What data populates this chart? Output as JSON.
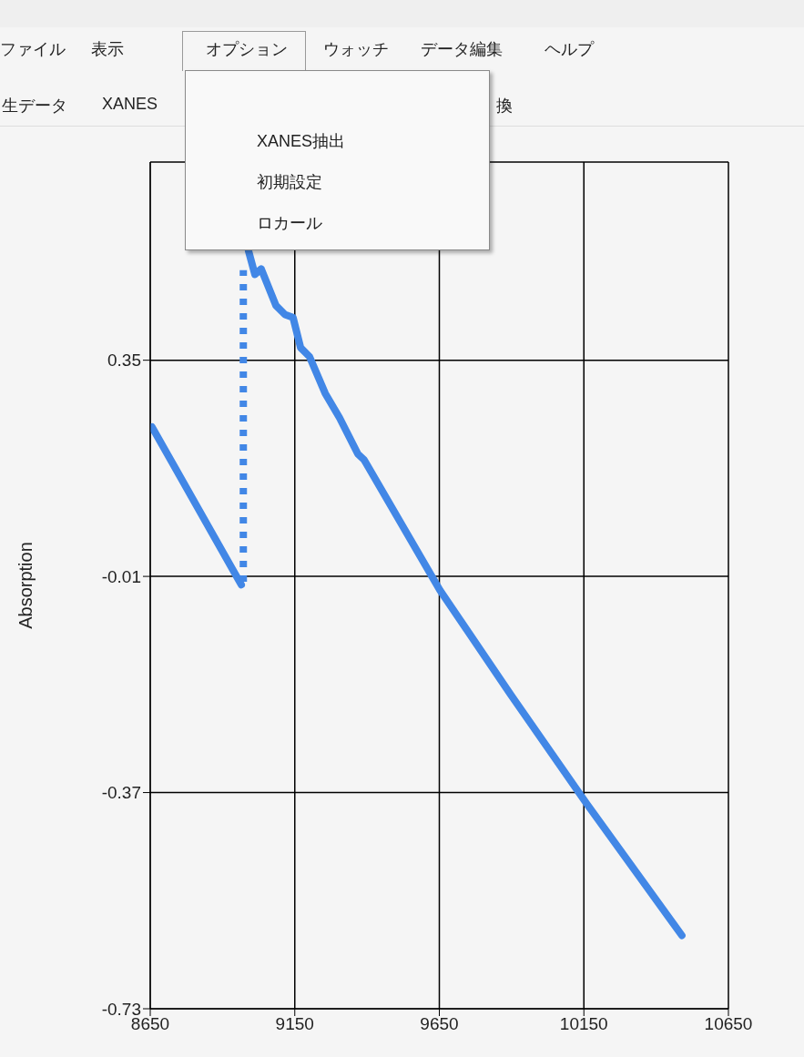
{
  "chart_data": {
    "type": "line",
    "ylabel": "Absorption",
    "xlim": [
      8650,
      10650
    ],
    "xticks": [
      8650,
      9150,
      9650,
      10150,
      10650
    ],
    "ylim": [
      -0.73,
      0.68
    ],
    "yticks": [
      -0.73,
      -0.37,
      -0.01,
      0.35
    ],
    "grid": true,
    "marker": "none",
    "series": [
      {
        "color": "#4287e6",
        "line_style": "solid",
        "x": [
          8656,
          8965
        ],
        "values": [
          0.239,
          -0.024
        ]
      },
      {
        "color": "#4287e6",
        "line_style": "dotted",
        "x": [
          8972,
          8972
        ],
        "values": [
          -0.019,
          0.5
        ]
      },
      {
        "color": "#4287e6",
        "line_style": "solid",
        "x": [
          8990,
          9012,
          9034,
          9085,
          9116,
          9144,
          9170,
          9201,
          9255,
          9305,
          9368,
          9390,
          9652,
          9897,
          10159,
          10489
        ],
        "values": [
          0.532,
          0.493,
          0.502,
          0.441,
          0.426,
          0.421,
          0.371,
          0.356,
          0.295,
          0.254,
          0.194,
          0.184,
          -0.033,
          -0.207,
          -0.388,
          -0.608
        ]
      }
    ],
    "annotations": [
      "ファイル",
      "表示",
      "オプション",
      "ウォッチ",
      "データ編集",
      "ヘルプ",
      "生データ",
      "XANES",
      "換",
      "XANES抽出",
      "初期設定",
      "ロカール"
    ]
  }
}
